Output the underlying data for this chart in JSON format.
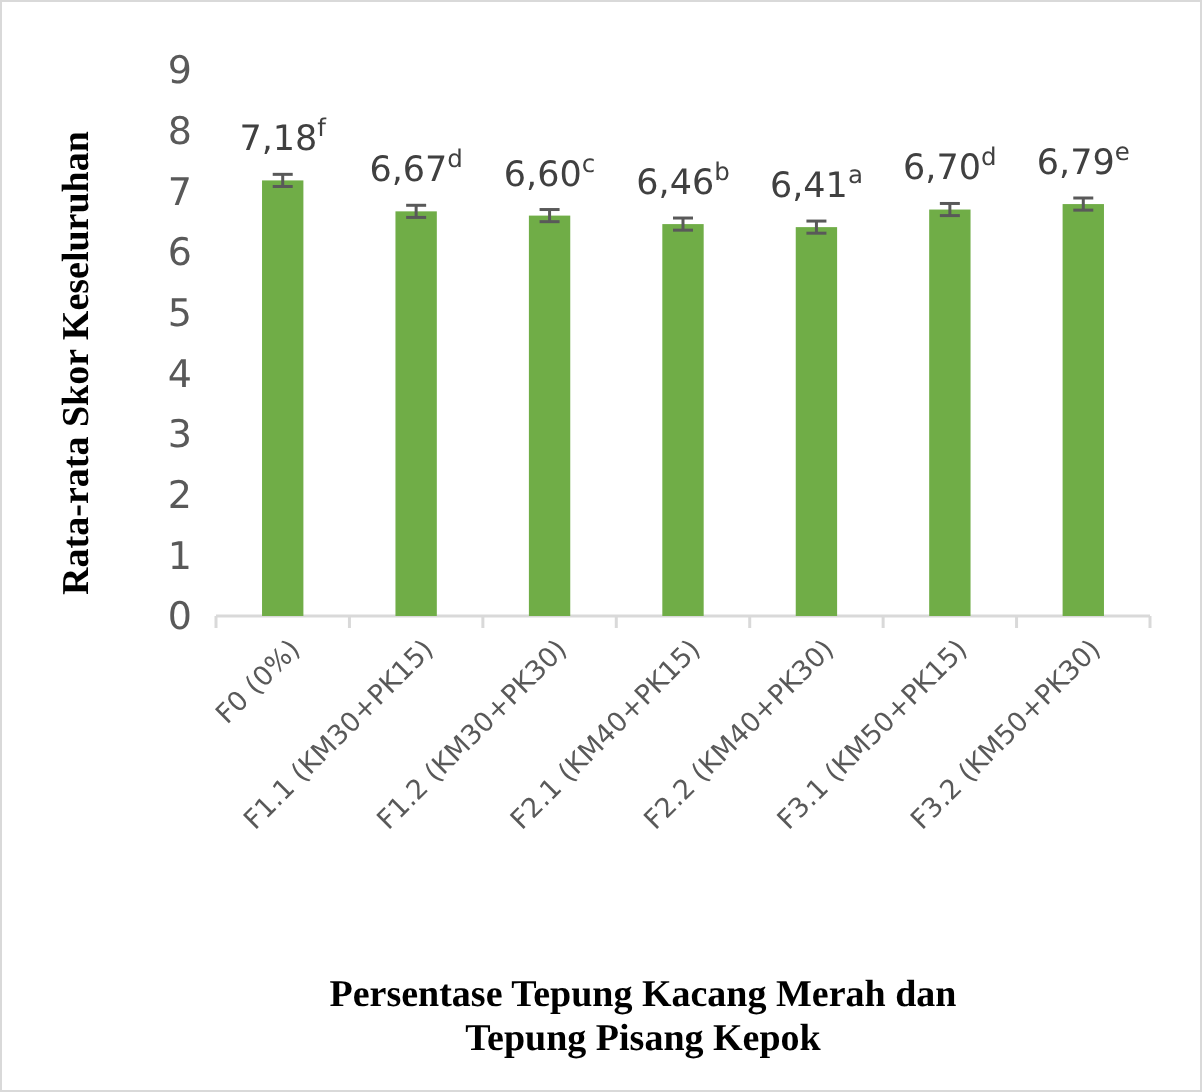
{
  "chart_data": {
    "type": "bar",
    "xlabel": "Persentase Tepung Kacang Merah dan Tepung Pisang Kepok",
    "ylabel": "Rata-rata Skor Keseluruhan",
    "categories": [
      "F0 (0%)",
      "F1.1 (KM30+PK15)",
      "F1.2 (KM30+PK30)",
      "F2.1 (KM40+PK15)",
      "F2.2 (KM40+PK30)",
      "F3.1 (KM50+PK15)",
      "F3.2 (KM50+PK30)"
    ],
    "values": [
      7.18,
      6.67,
      6.6,
      6.46,
      6.41,
      6.7,
      6.79
    ],
    "errors": [
      0.1,
      0.1,
      0.1,
      0.1,
      0.1,
      0.1,
      0.1
    ],
    "value_labels": [
      "7,18$^{f}$",
      "6,67$^{d}$",
      "6,60$^{c}$",
      "6,46$^{b}$",
      "6,41$^{a}$",
      "6,70$^{d}$",
      "6,79$^{e}$"
    ],
    "color": "#70ad47",
    "ylim": [
      0,
      9
    ],
    "yticks": [
      0,
      1,
      2,
      3,
      4,
      5,
      6,
      7,
      8,
      9
    ]
  }
}
